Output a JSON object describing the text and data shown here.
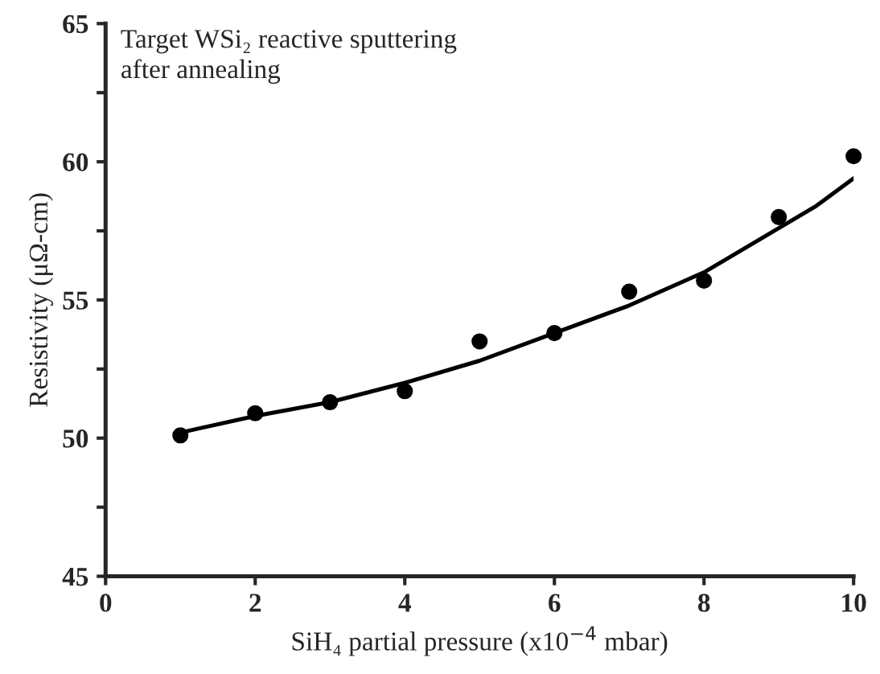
{
  "chart_data": {
    "type": "scatter",
    "xlabel": "SiH₄ partial pressure (x10$^{−4}$ mbar)",
    "ylabel": "Resistivity (μΩ-cm)",
    "annotations": [
      "Target WSi₂ reactive sputtering\nafter annealing"
    ],
    "series": [
      {
        "color": "#000000",
        "marker": "circle",
        "x": [
          1,
          2,
          3,
          4,
          5,
          6,
          7,
          8,
          9,
          10
        ],
        "values": [
          50.1,
          50.9,
          51.3,
          51.7,
          53.5,
          53.8,
          55.3,
          55.7,
          58.0,
          60.2
        ]
      },
      {
        "type": "line",
        "color": "#000000",
        "marker": "none",
        "line_style": "solid",
        "x": [
          1,
          2,
          3,
          4,
          5,
          6,
          7,
          8,
          9,
          9.5,
          10
        ],
        "values": [
          50.2,
          50.8,
          51.3,
          52.0,
          52.8,
          53.8,
          54.8,
          56.0,
          57.6,
          58.4,
          59.4
        ]
      }
    ],
    "xlim": [
      0,
      10
    ],
    "xticks": [
      0,
      2,
      4,
      6,
      8,
      10
    ],
    "ylim": [
      45,
      65
    ],
    "yticks": [
      45,
      {
        "value": 47.5,
        "label": null
      },
      50,
      {
        "value": 52.5,
        "label": null
      },
      55,
      {
        "value": 57.5,
        "label": null
      },
      60,
      {
        "value": 62.5,
        "label": null
      },
      65
    ],
    "grid": false,
    "legend": false
  }
}
